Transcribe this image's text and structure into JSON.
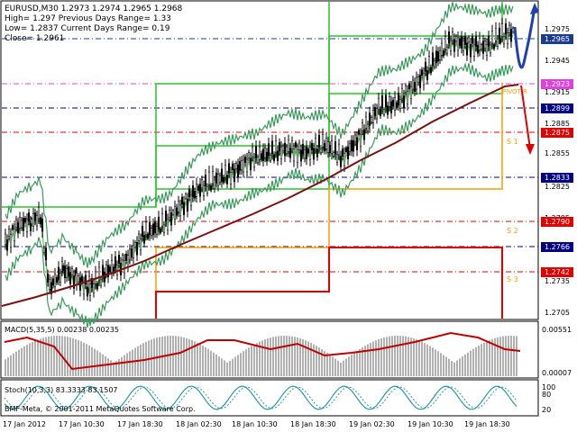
{
  "header": {
    "line1": "EURUSD,M30   1.2973 1.2974 1.2965 1.2968",
    "line2": "High= 1.297    Previous Days Range= 1.33",
    "line3": "Low= 1.2837    Current Days Range= 0.19",
    "line4": "Close= 1.2961"
  },
  "price_axis": {
    "ticks": [
      "1.2975",
      "1.2945",
      "1.2915",
      "1.2885",
      "1.2855",
      "1.2825",
      "1.2795",
      "1.2735",
      "1.2705"
    ],
    "labels": [
      {
        "text": "1.2965",
        "color": "#1a3c8c"
      },
      {
        "text": "1.2923",
        "color": "#e040e0"
      },
      {
        "text": "1.2899",
        "color": "#000080"
      },
      {
        "text": "1.2875",
        "color": "#e00000"
      },
      {
        "text": "1.2833",
        "color": "#000080"
      },
      {
        "text": "1.2790",
        "color": "#e00000"
      },
      {
        "text": "1.2766",
        "color": "#000080"
      },
      {
        "text": "1.2742",
        "color": "#e00000"
      }
    ]
  },
  "pivot_labels": {
    "s1": "S 1",
    "s2": "S 2",
    "s3": "S 3",
    "r": "PIVOT R"
  },
  "macd": {
    "title": "MACD(5,35,5) 0.00238 0.00235",
    "top": "0.00551",
    "bottom": "0.00007"
  },
  "stoch": {
    "title": "Stoch(10,3,3) 83.3333 83.1507",
    "top": "100",
    "l80": "80",
    "l20": "20"
  },
  "footer": {
    "copyright": "BMF-Meta, © 2001-2011 MetaQuotes Software Corp."
  },
  "time_axis": [
    "17 Jan 2012",
    "17 Jan 10:30",
    "17 Jan 18:30",
    "18 Jan 02:30",
    "18 Jan 10:30",
    "18 Jan 18:30",
    "19 Jan 02:30",
    "19 Jan 10:30",
    "19 Jan 18:30"
  ],
  "colors": {
    "green": "#2fc02f",
    "bollinger": "#3a9a5a",
    "ma": "#7a1010",
    "orange": "#f0a000",
    "red": "#e00000",
    "arrow": "#2040b0",
    "macd": "#c00000"
  }
}
